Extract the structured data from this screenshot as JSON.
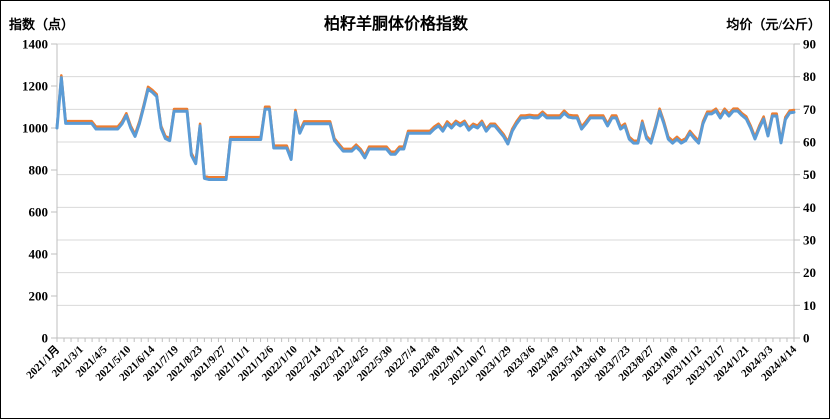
{
  "header": {
    "title": "柏籽羊胴体价格指数",
    "left_axis_title": "指数（点）",
    "right_axis_title": "均价（元/公斤）"
  },
  "colors": {
    "index_line": "#5B9BD5",
    "price_line": "#ED7D31",
    "gridline": "#d9d9d9",
    "axis": "#bfbfbf",
    "text": "#000000",
    "background": "#ffffff"
  },
  "chart_data": {
    "type": "line",
    "title": "柏籽羊胴体价格指数",
    "grid": true,
    "legend_position": "none",
    "left_axis": {
      "label": "指数（点）",
      "min": 0,
      "max": 1400,
      "step": 200,
      "tick_labels": [
        "0",
        "200",
        "400",
        "600",
        "800",
        "1000",
        "1200",
        "1400"
      ]
    },
    "right_axis": {
      "label": "均价（元/公斤）",
      "min": 0,
      "max": 90,
      "step": 10,
      "tick_labels": [
        "0",
        "10",
        "20",
        "30",
        "40",
        "50",
        "60",
        "70",
        "80",
        "90"
      ]
    },
    "x_tick_labels": [
      "2021/1月",
      "2021/3/1",
      "2021/4/5",
      "2021/5/10",
      "2021/6/14",
      "2021/7/19",
      "2021/8/23",
      "2021/9/27",
      "2021/11/1",
      "2021/12/6",
      "2022/1/10",
      "2022/2/14",
      "2022/3/21",
      "2022/4/25",
      "2022/5/30",
      "2022/7/4",
      "2022/8/8",
      "2022/9/11",
      "2022/10/17",
      "2023/1/29",
      "2023/3/6",
      "2023/4/9",
      "2023/5/14",
      "2023/6/18",
      "2023/7/23",
      "2023/8/27",
      "2023/10/8",
      "2023/11/12",
      "2023/12/17",
      "2024/1/21",
      "2024/3/3",
      "2024/4/14"
    ],
    "series": [
      {
        "id": "carcass-price-index",
        "axis": "left",
        "color": "#5B9BD5",
        "stroke_width": 3,
        "values": [
          1000,
          1240,
          1022,
          1022,
          1022,
          1022,
          1022,
          1022,
          1022,
          995,
          995,
          995,
          995,
          995,
          995,
          1020,
          1060,
          1000,
          960,
          1020,
          1100,
          1185,
          1170,
          1150,
          1000,
          950,
          940,
          1080,
          1080,
          1080,
          1080,
          870,
          830,
          1010,
          760,
          755,
          755,
          755,
          755,
          755,
          945,
          945,
          945,
          945,
          945,
          945,
          945,
          945,
          1090,
          1090,
          905,
          905,
          905,
          905,
          850,
          1075,
          975,
          1020,
          1020,
          1020,
          1020,
          1020,
          1020,
          1020,
          940,
          915,
          890,
          890,
          890,
          910,
          890,
          858,
          900,
          900,
          900,
          900,
          900,
          875,
          875,
          900,
          900,
          975,
          975,
          975,
          975,
          975,
          975,
          995,
          1010,
          985,
          1020,
          1000,
          1024,
          1010,
          1024,
          990,
          1010,
          1000,
          1024,
          985,
          1010,
          1010,
          985,
          960,
          924,
          985,
          1020,
          1048,
          1048,
          1052,
          1048,
          1048,
          1067,
          1048,
          1048,
          1048,
          1048,
          1071,
          1052,
          1048,
          1048,
          995,
          1020,
          1048,
          1048,
          1048,
          1048,
          1010,
          1048,
          1048,
          995,
          1010,
          947,
          928,
          928,
          1024,
          950,
          928,
          1000,
          1081,
          1020,
          947,
          928,
          947,
          928,
          940,
          976,
          950,
          928,
          1020,
          1067,
          1067,
          1081,
          1048,
          1081,
          1057,
          1081,
          1081,
          1060,
          1043,
          1000,
          948,
          1000,
          1043,
          962,
          1057,
          1057,
          929,
          1040,
          1072,
          1075
        ]
      },
      {
        "id": "average-price",
        "axis": "right",
        "color": "#ED7D31",
        "stroke_width": 2.5,
        "values": [
          65.0,
          80.4,
          66.4,
          66.4,
          66.4,
          66.4,
          66.4,
          66.4,
          66.4,
          64.7,
          64.7,
          64.7,
          64.7,
          64.7,
          64.7,
          66.3,
          68.8,
          65.0,
          62.4,
          66.3,
          71.4,
          76.9,
          75.9,
          74.6,
          65.0,
          61.8,
          61.1,
          70.1,
          70.1,
          70.1,
          70.1,
          56.6,
          54.1,
          65.6,
          49.6,
          49.2,
          49.2,
          49.2,
          49.2,
          49.2,
          61.5,
          61.5,
          61.5,
          61.5,
          61.5,
          61.5,
          61.5,
          61.5,
          70.8,
          70.8,
          58.9,
          58.9,
          58.9,
          58.9,
          55.3,
          69.8,
          63.4,
          66.3,
          66.3,
          66.3,
          66.3,
          66.3,
          66.3,
          66.3,
          61.1,
          59.5,
          57.9,
          57.9,
          57.9,
          59.2,
          57.9,
          55.9,
          58.6,
          58.6,
          58.6,
          58.6,
          58.6,
          57.0,
          57.0,
          58.6,
          58.6,
          63.4,
          63.4,
          63.4,
          63.4,
          63.4,
          63.4,
          64.7,
          65.6,
          64.0,
          66.3,
          65.0,
          66.5,
          65.6,
          66.5,
          64.3,
          65.6,
          65.0,
          66.5,
          64.0,
          65.6,
          65.6,
          64.0,
          62.4,
          60.1,
          64.0,
          66.3,
          68.1,
          68.1,
          68.3,
          68.1,
          68.1,
          69.3,
          68.1,
          68.1,
          68.1,
          68.1,
          69.6,
          68.3,
          68.1,
          68.1,
          64.7,
          66.3,
          68.1,
          68.1,
          68.1,
          68.1,
          65.6,
          68.1,
          68.1,
          64.7,
          65.6,
          61.6,
          60.4,
          60.4,
          66.5,
          61.8,
          60.4,
          65.0,
          70.2,
          66.3,
          61.6,
          60.4,
          61.6,
          60.4,
          61.1,
          63.4,
          61.8,
          60.4,
          66.3,
          69.3,
          69.3,
          70.2,
          68.1,
          70.2,
          68.7,
          70.2,
          70.2,
          68.8,
          67.8,
          65.0,
          61.6,
          65.0,
          67.8,
          62.5,
          68.7,
          68.7,
          60.4,
          67.6,
          69.6,
          69.8
        ]
      }
    ]
  }
}
